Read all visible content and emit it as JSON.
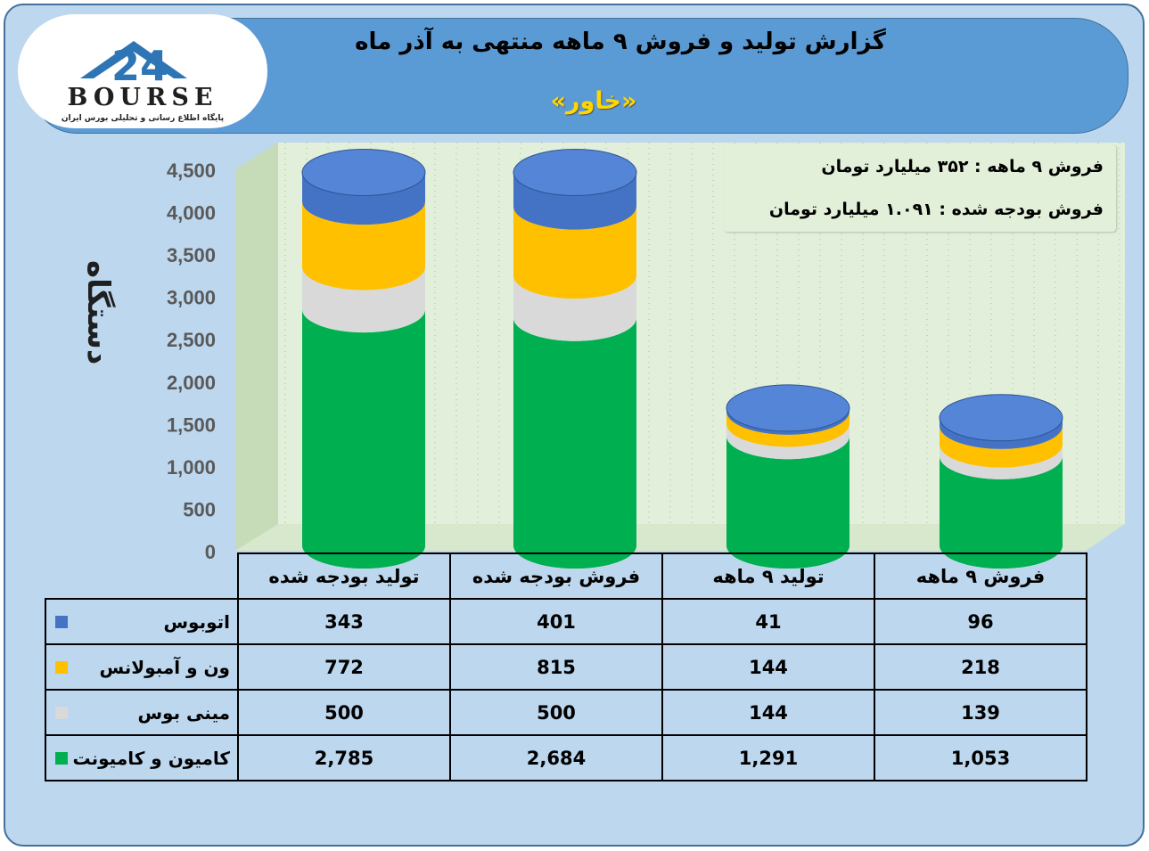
{
  "title": "گزارش تولید و فروش ۹ ماهه منتهی به آذر ماه",
  "company": "«خاور»",
  "logo": {
    "text": "BOURSE",
    "tagline": "پایگاه اطلاع رسانی و تحلیلی بورس ایران",
    "number": "24"
  },
  "info": {
    "line1": "فروش ۹ ماهه : ۳۵۲ میلیارد تومان",
    "line2": "فروش بودجه شده : ۱.۰۹۱ میلیارد تومان"
  },
  "colors": {
    "bus": "#4472c4",
    "van": "#ffc000",
    "minibus": "#d9d9d9",
    "truck": "#00b050"
  },
  "chart_data": {
    "type": "bar",
    "stacked": true,
    "ylabel": "دستگاه",
    "ylim": [
      0,
      4500
    ],
    "yticks": [
      "0",
      "500",
      "1,000",
      "1,500",
      "2,000",
      "2,500",
      "3,000",
      "3,500",
      "4,000",
      "4,500"
    ],
    "categories": [
      "تولید بودجه شده",
      "فروش بودجه شده",
      "تولید ۹ ماهه",
      "فروش ۹ ماهه"
    ],
    "series": [
      {
        "name": "کامیون و کامیونت",
        "key": "truck",
        "values": [
          2785,
          2684,
          1291,
          1053
        ],
        "labels": [
          "2,785",
          "2,684",
          "1,291",
          "1,053"
        ]
      },
      {
        "name": "مینی بوس",
        "key": "minibus",
        "values": [
          500,
          500,
          144,
          139
        ],
        "labels": [
          "500",
          "500",
          "144",
          "139"
        ]
      },
      {
        "name": "ون و آمبولانس",
        "key": "van",
        "values": [
          772,
          815,
          144,
          218
        ],
        "labels": [
          "772",
          "815",
          "144",
          "218"
        ]
      },
      {
        "name": "اتوبوس",
        "key": "bus",
        "values": [
          343,
          401,
          41,
          96
        ],
        "labels": [
          "343",
          "401",
          "41",
          "96"
        ]
      }
    ],
    "grid": true,
    "legend": "table"
  }
}
